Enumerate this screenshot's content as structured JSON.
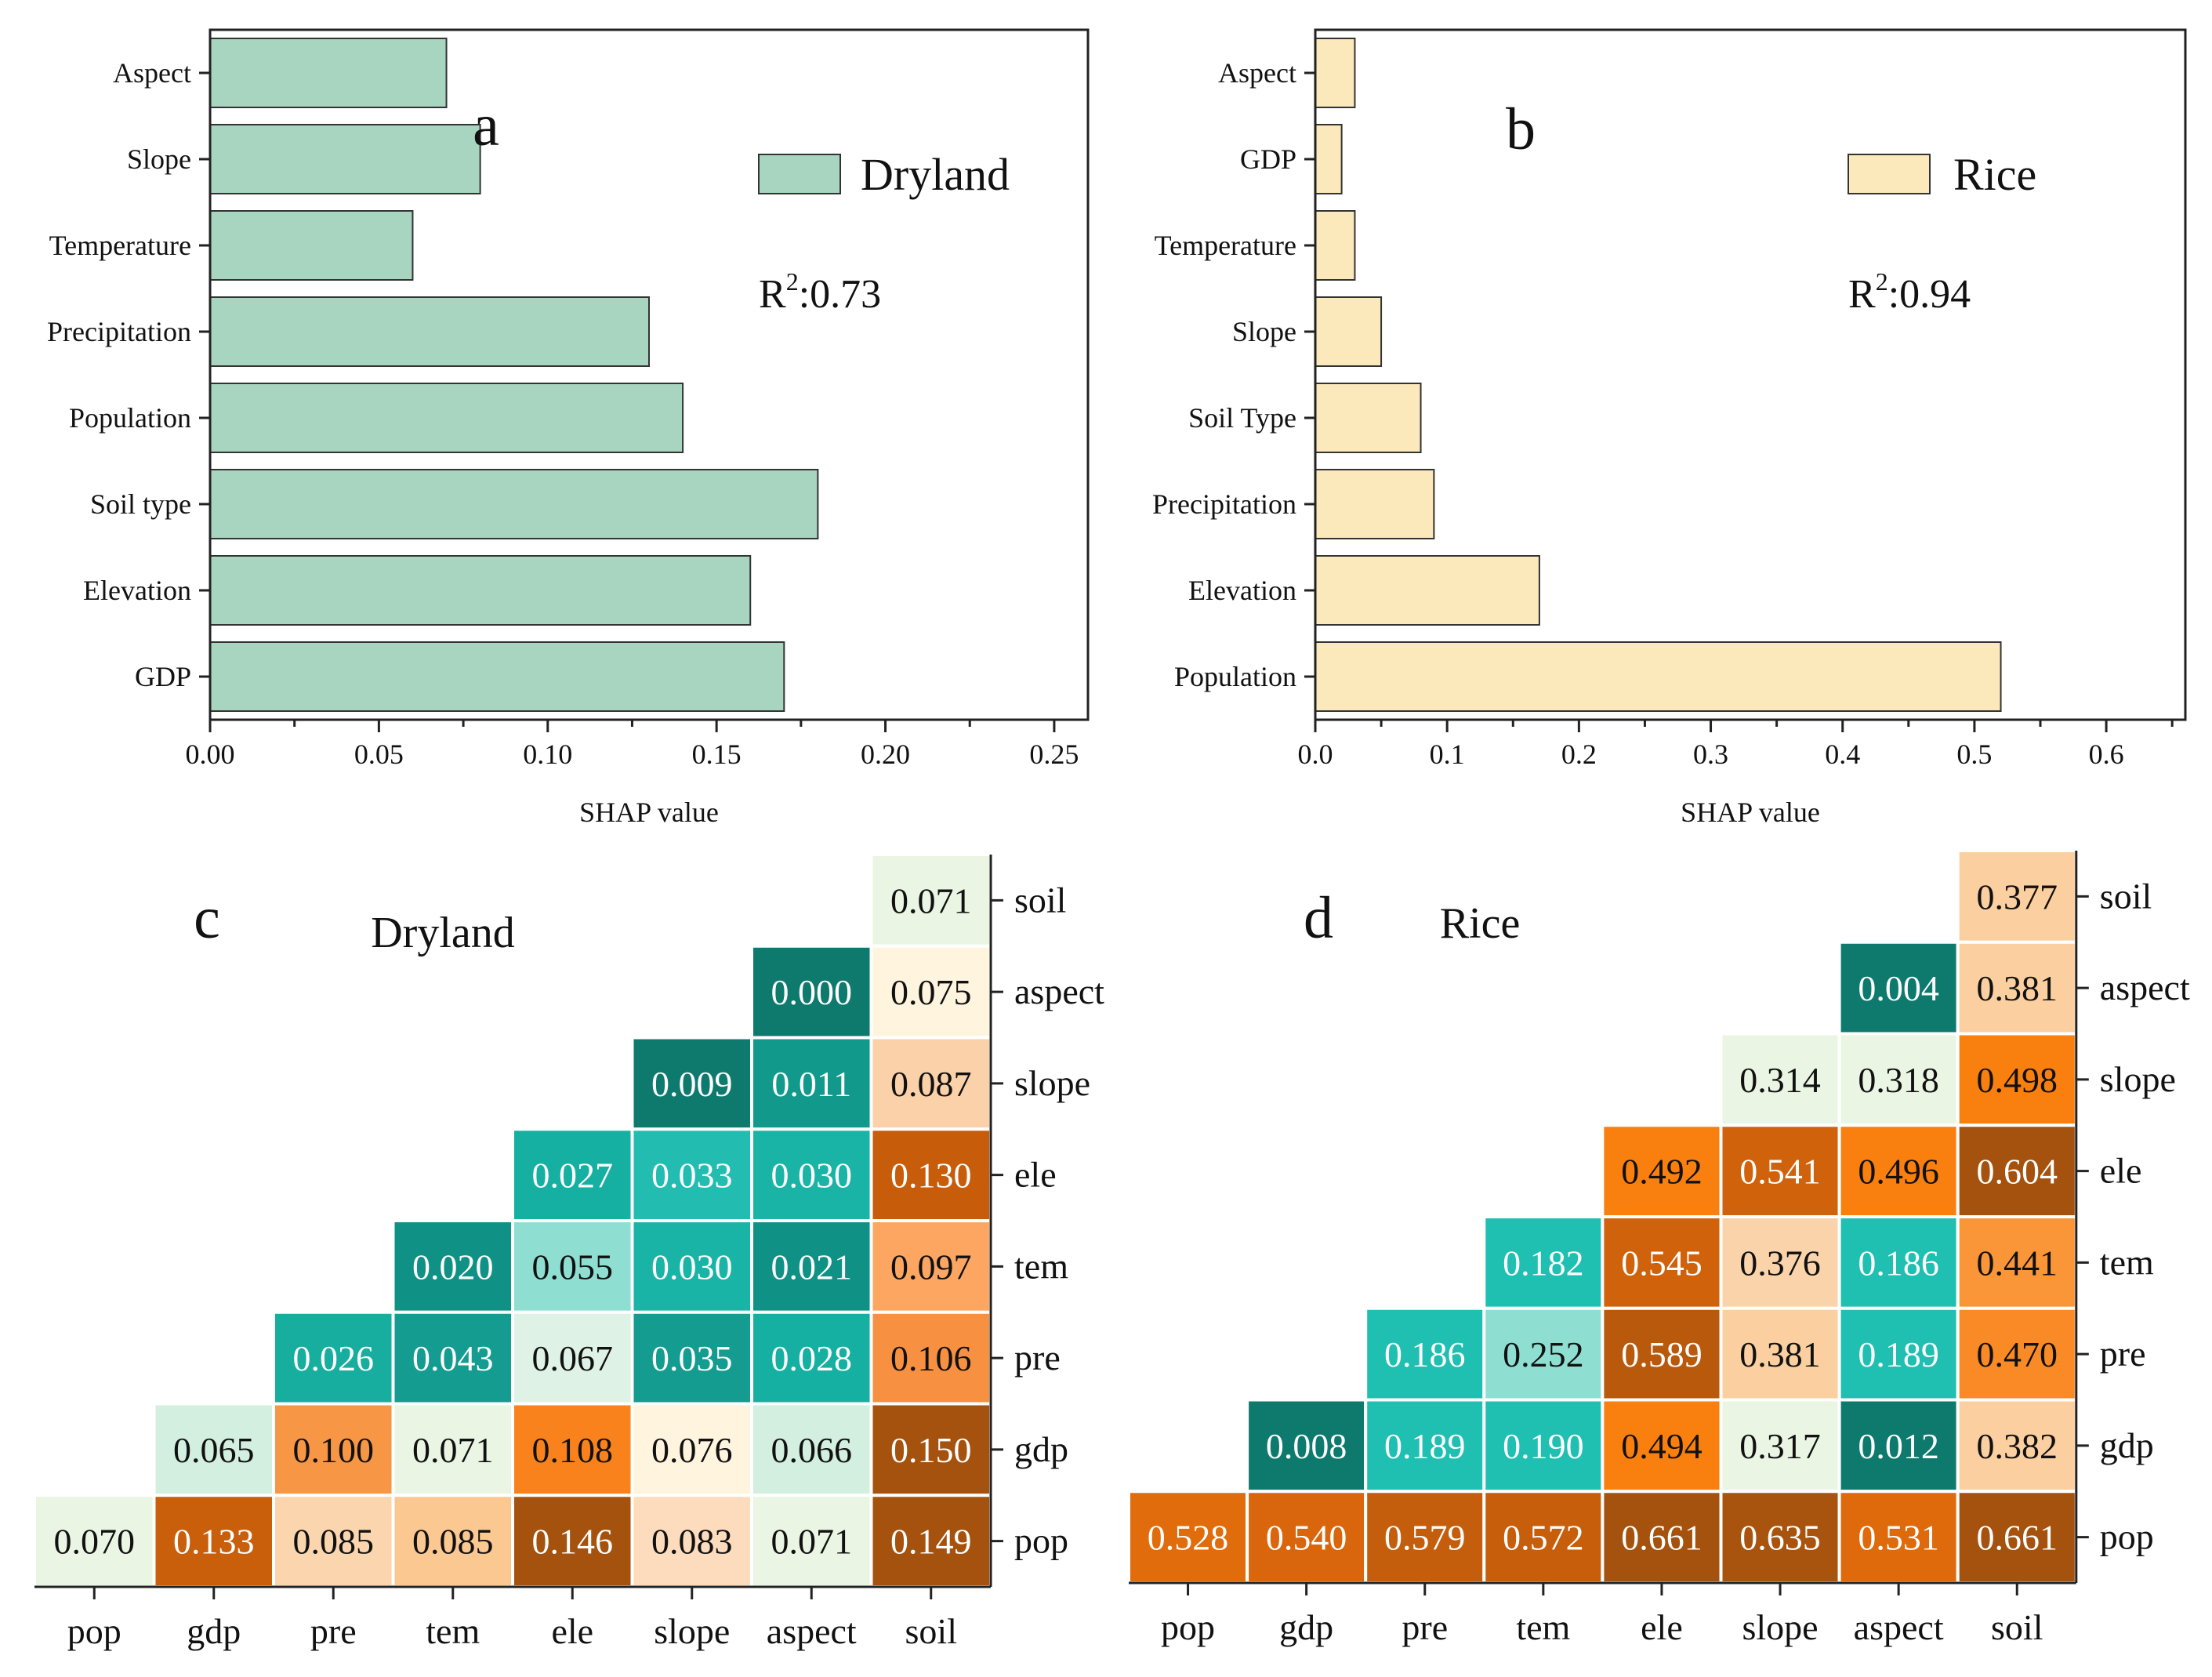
{
  "chart_data": [
    {
      "panel": "a",
      "type": "bar",
      "orientation": "horizontal",
      "legend": "Dryland",
      "r2_label": "R²:0.73",
      "r2_prefix": "R",
      "r2_sup": "2",
      "r2_value": ":0.73",
      "categories": [
        "Aspect",
        "Slope",
        "Temperature",
        "Precipitation",
        "Population",
        "Soil type",
        "Elevation",
        "GDP"
      ],
      "values": [
        0.07,
        0.08,
        0.06,
        0.13,
        0.14,
        0.18,
        0.16,
        0.17
      ],
      "xlabel": "SHAP value",
      "xlim": [
        0,
        0.26
      ],
      "ticks": [
        "0.00",
        "0.05",
        "0.10",
        "0.15",
        "0.20",
        "0.25"
      ],
      "tick_values": [
        0,
        0.05,
        0.1,
        0.15,
        0.2,
        0.25
      ],
      "color": "#a8d5c0"
    },
    {
      "panel": "b",
      "type": "bar",
      "orientation": "horizontal",
      "legend": "Rice",
      "r2_label": "R²:0.94",
      "r2_prefix": "R",
      "r2_sup": "2",
      "r2_value": ":0.94",
      "categories": [
        "Aspect",
        "GDP",
        "Temperature",
        "Slope",
        "Soil Type",
        "Precipitation",
        "Elevation",
        "Population"
      ],
      "values": [
        0.03,
        0.02,
        0.03,
        0.05,
        0.08,
        0.09,
        0.17,
        0.52
      ],
      "xlabel": "SHAP value",
      "xlim": [
        0,
        0.66
      ],
      "ticks": [
        "0.0",
        "0.1",
        "0.2",
        "0.3",
        "0.4",
        "0.5",
        "0.6"
      ],
      "tick_values": [
        0,
        0.1,
        0.2,
        0.3,
        0.4,
        0.5,
        0.6
      ],
      "color": "#fbe8bb"
    },
    {
      "panel": "c",
      "type": "heatmap",
      "title": "Dryland",
      "x_labels": [
        "pop",
        "gdp",
        "pre",
        "tem",
        "ele",
        "slope",
        "aspect",
        "soil"
      ],
      "y_labels": [
        "soil",
        "aspect",
        "slope",
        "ele",
        "tem",
        "pre",
        "gdp",
        "pop"
      ],
      "cells": [
        [
          null,
          null,
          null,
          null,
          null,
          null,
          null,
          "0.071"
        ],
        [
          null,
          null,
          null,
          null,
          null,
          null,
          "0.000",
          "0.075"
        ],
        [
          null,
          null,
          null,
          null,
          null,
          "0.009",
          "0.011",
          "0.087"
        ],
        [
          null,
          null,
          null,
          null,
          "0.027",
          "0.033",
          "0.030",
          "0.130"
        ],
        [
          null,
          null,
          null,
          "0.020",
          "0.055",
          "0.030",
          "0.021",
          "0.097"
        ],
        [
          null,
          null,
          "0.026",
          "0.043",
          "0.067",
          "0.035",
          "0.028",
          "0.106"
        ],
        [
          null,
          "0.065",
          "0.100",
          "0.071",
          "0.108",
          "0.076",
          "0.066",
          "0.150"
        ],
        [
          "0.070",
          "0.133",
          "0.085",
          "0.085",
          "0.146",
          "0.083",
          "0.071",
          "0.149"
        ]
      ],
      "colors": [
        [
          null,
          null,
          null,
          null,
          null,
          null,
          null,
          "#eaf5e3"
        ],
        [
          null,
          null,
          null,
          null,
          null,
          null,
          "#0e7a6e",
          "#fff5df"
        ],
        [
          null,
          null,
          null,
          null,
          null,
          "#0e7a6e",
          "#119a8c",
          "#fad1a8"
        ],
        [
          null,
          null,
          null,
          null,
          "#16b0a2",
          "#22bdb0",
          "#1ab4a6",
          "#c75c0b"
        ],
        [
          null,
          null,
          null,
          "#0f9185",
          "#8edfd1",
          "#1ab4a6",
          "#0f9185",
          "#fca662"
        ],
        [
          null,
          null,
          "#17ae9f",
          "#139c8f",
          "#dff2e6",
          "#139c8f",
          "#16b0a2",
          "#f79141"
        ],
        [
          null,
          "#d3efe0",
          "#f79645",
          "#eaf5e3",
          "#f9821d",
          "#fff5df",
          "#d3efe0",
          "#a4520e"
        ],
        [
          "#eaf5e3",
          "#c95e0b",
          "#fbd5ae",
          "#fbc892",
          "#a4520e",
          "#fcdcbc",
          "#eaf5e3",
          "#a4520e"
        ]
      ]
    },
    {
      "panel": "d",
      "type": "heatmap",
      "title": "Rice",
      "x_labels": [
        "pop",
        "gdp",
        "pre",
        "tem",
        "ele",
        "slope",
        "aspect",
        "soil"
      ],
      "y_labels": [
        "soil",
        "aspect",
        "slope",
        "ele",
        "tem",
        "pre",
        "gdp",
        "pop"
      ],
      "cells": [
        [
          null,
          null,
          null,
          null,
          null,
          null,
          null,
          "0.377"
        ],
        [
          null,
          null,
          null,
          null,
          null,
          null,
          "0.004",
          "0.381"
        ],
        [
          null,
          null,
          null,
          null,
          null,
          "0.314",
          "0.318",
          "0.498"
        ],
        [
          null,
          null,
          null,
          null,
          "0.492",
          "0.541",
          "0.496",
          "0.604"
        ],
        [
          null,
          null,
          null,
          "0.182",
          "0.545",
          "0.376",
          "0.186",
          "0.441"
        ],
        [
          null,
          null,
          "0.186",
          "0.252",
          "0.589",
          "0.381",
          "0.189",
          "0.470"
        ],
        [
          null,
          "0.008",
          "0.189",
          "0.190",
          "0.494",
          "0.317",
          "0.012",
          "0.382"
        ],
        [
          "0.528",
          "0.540",
          "0.579",
          "0.572",
          "0.661",
          "0.635",
          "0.531",
          "0.661"
        ]
      ],
      "colors": [
        [
          null,
          null,
          null,
          null,
          null,
          null,
          null,
          "#fbcf9f"
        ],
        [
          null,
          null,
          null,
          null,
          null,
          null,
          "#0e7a6e",
          "#fbcf9f"
        ],
        [
          null,
          null,
          null,
          null,
          null,
          "#eaf5e3",
          "#eaf5e3",
          "#f97f0f"
        ],
        [
          null,
          null,
          null,
          null,
          "#f97f0f",
          "#cf620a",
          "#f97f0f",
          "#a4520e"
        ],
        [
          null,
          null,
          null,
          "#1fbfb1",
          "#cf620a",
          "#fbd3aa",
          "#1fbfb1",
          "#fa9637"
        ],
        [
          null,
          null,
          "#1fbfb1",
          "#8edfd1",
          "#b9590c",
          "#fbcf9f",
          "#1fbfb1",
          "#fa8a26"
        ],
        [
          null,
          "#0e7a6e",
          "#1fbfb1",
          "#1fbfb1",
          "#f97f0f",
          "#eaf5e3",
          "#0e7a6e",
          "#fbcf9f"
        ],
        [
          "#e06c0c",
          "#d9660c",
          "#c45d0c",
          "#c75e0c",
          "#a4520e",
          "#a9540e",
          "#de6a0c",
          "#a4520e"
        ]
      ]
    }
  ]
}
